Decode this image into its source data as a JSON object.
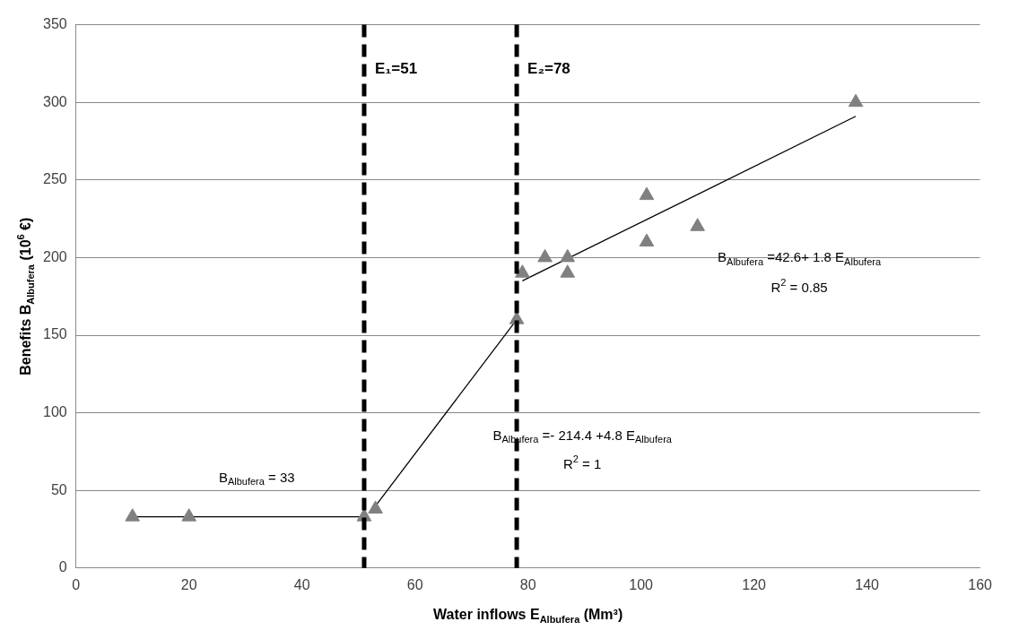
{
  "chart_data": {
    "type": "scatter",
    "xlabel": "Water inflows E$_{Albufera}$ (Mm³)",
    "ylabel": "Benefits B$_{Albufera}$ (10$^{6}$ €)",
    "xlim": [
      0,
      160
    ],
    "xticks": [
      0,
      20,
      40,
      60,
      80,
      100,
      120,
      140,
      160
    ],
    "ylim": [
      0,
      350
    ],
    "yticks": [
      0,
      50,
      100,
      150,
      200,
      250,
      300,
      350
    ],
    "grid": "y",
    "legend": false,
    "series": [
      {
        "marker": "triangle",
        "color": "#808080",
        "x": [
          10,
          20,
          51,
          53,
          78,
          79,
          83,
          87,
          87,
          101,
          101,
          110,
          138
        ],
        "values": [
          33,
          33,
          33,
          38,
          160,
          190,
          200,
          200,
          190,
          240,
          210,
          220,
          300
        ]
      },
      {
        "type": "line",
        "marker": "none",
        "color": "#000000",
        "x": [
          10,
          51
        ],
        "values": [
          33,
          33
        ]
      },
      {
        "type": "line",
        "marker": "none",
        "color": "#000000",
        "x": [
          53,
          78
        ],
        "values": [
          40,
          160
        ]
      },
      {
        "type": "line",
        "marker": "none",
        "color": "#000000",
        "x": [
          79,
          138
        ],
        "values": [
          185,
          291
        ]
      }
    ],
    "ref_lines": [
      {
        "axis": "x",
        "value": 51,
        "label": "E₁=51",
        "color": "#000000",
        "line_style": "dashed"
      },
      {
        "axis": "x",
        "value": 78,
        "label": "E₂=78",
        "color": "#000000",
        "line_style": "dashed"
      }
    ],
    "annotations": [
      "B$_{Albufera}$ = 33",
      "B$_{Albufera}$ =- 214.4 +4.8 E$_{Albufera}$",
      "R$^{2}$ = 1",
      "B$_{Albufera}$ =42.6+ 1.8 E$_{Albufera}$",
      "R$^{2}$ = 0.85"
    ]
  }
}
